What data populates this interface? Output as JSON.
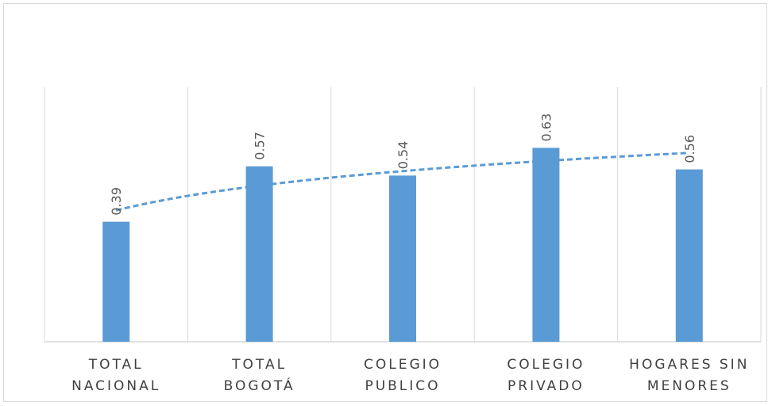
{
  "chart_data": {
    "type": "bar",
    "categories": [
      [
        "TOTAL",
        "NACIONAL"
      ],
      [
        "TOTAL",
        "BOGOTÁ"
      ],
      [
        "COLEGIO",
        "PUBLICO"
      ],
      [
        "COLEGIO",
        "PRIVADO"
      ],
      [
        "HOGARES SIN",
        "MENORES"
      ]
    ],
    "values": [
      0.39,
      0.57,
      0.54,
      0.63,
      0.56
    ],
    "value_labels": [
      "0.39",
      "0.57",
      "0.54",
      "0.63",
      "0.56"
    ],
    "trendline": {
      "type": "logarithmic",
      "style": "dashed",
      "color": "#5B9BD5"
    },
    "bar_color": "#5B9BD5",
    "gridlines": "vertical category separators",
    "legend": "none",
    "title": "",
    "xlabel": "",
    "ylabel": "",
    "ylim": [
      0,
      0.93
    ]
  }
}
